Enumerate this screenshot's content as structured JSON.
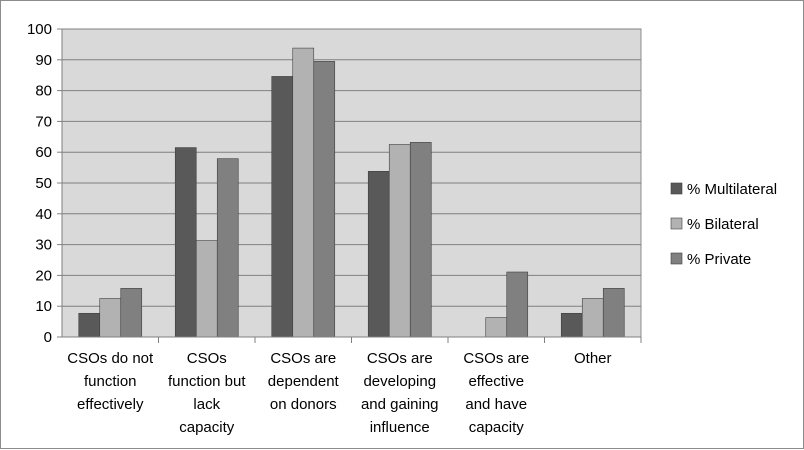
{
  "chart_data": {
    "type": "bar",
    "title": "",
    "xlabel": "",
    "ylabel": "",
    "ylim": [
      0,
      100
    ],
    "yticks": [
      0,
      10,
      20,
      30,
      40,
      50,
      60,
      70,
      80,
      90,
      100
    ],
    "grid": true,
    "legend_position": "right",
    "categories": [
      [
        "CSOs do not",
        "function",
        "effectively"
      ],
      [
        "CSOs",
        "function but",
        "lack",
        "capacity"
      ],
      [
        "CSOs are",
        "dependent",
        "on donors"
      ],
      [
        "CSOs are",
        "developing",
        "and gaining",
        "influence"
      ],
      [
        "CSOs are",
        "effective",
        "and have",
        "capacity"
      ],
      [
        "Other"
      ]
    ],
    "series": [
      {
        "name": "% Multilateral",
        "color": "#595959",
        "values": [
          7.7,
          61.5,
          84.6,
          53.8,
          0,
          7.7
        ]
      },
      {
        "name": "% Bilateral",
        "color": "#b2b2b2",
        "values": [
          12.5,
          31.3,
          93.8,
          62.5,
          6.3,
          12.5
        ]
      },
      {
        "name": "% Private",
        "color": "#808080",
        "values": [
          15.8,
          57.9,
          89.5,
          63.2,
          21.1,
          15.8
        ]
      }
    ]
  }
}
